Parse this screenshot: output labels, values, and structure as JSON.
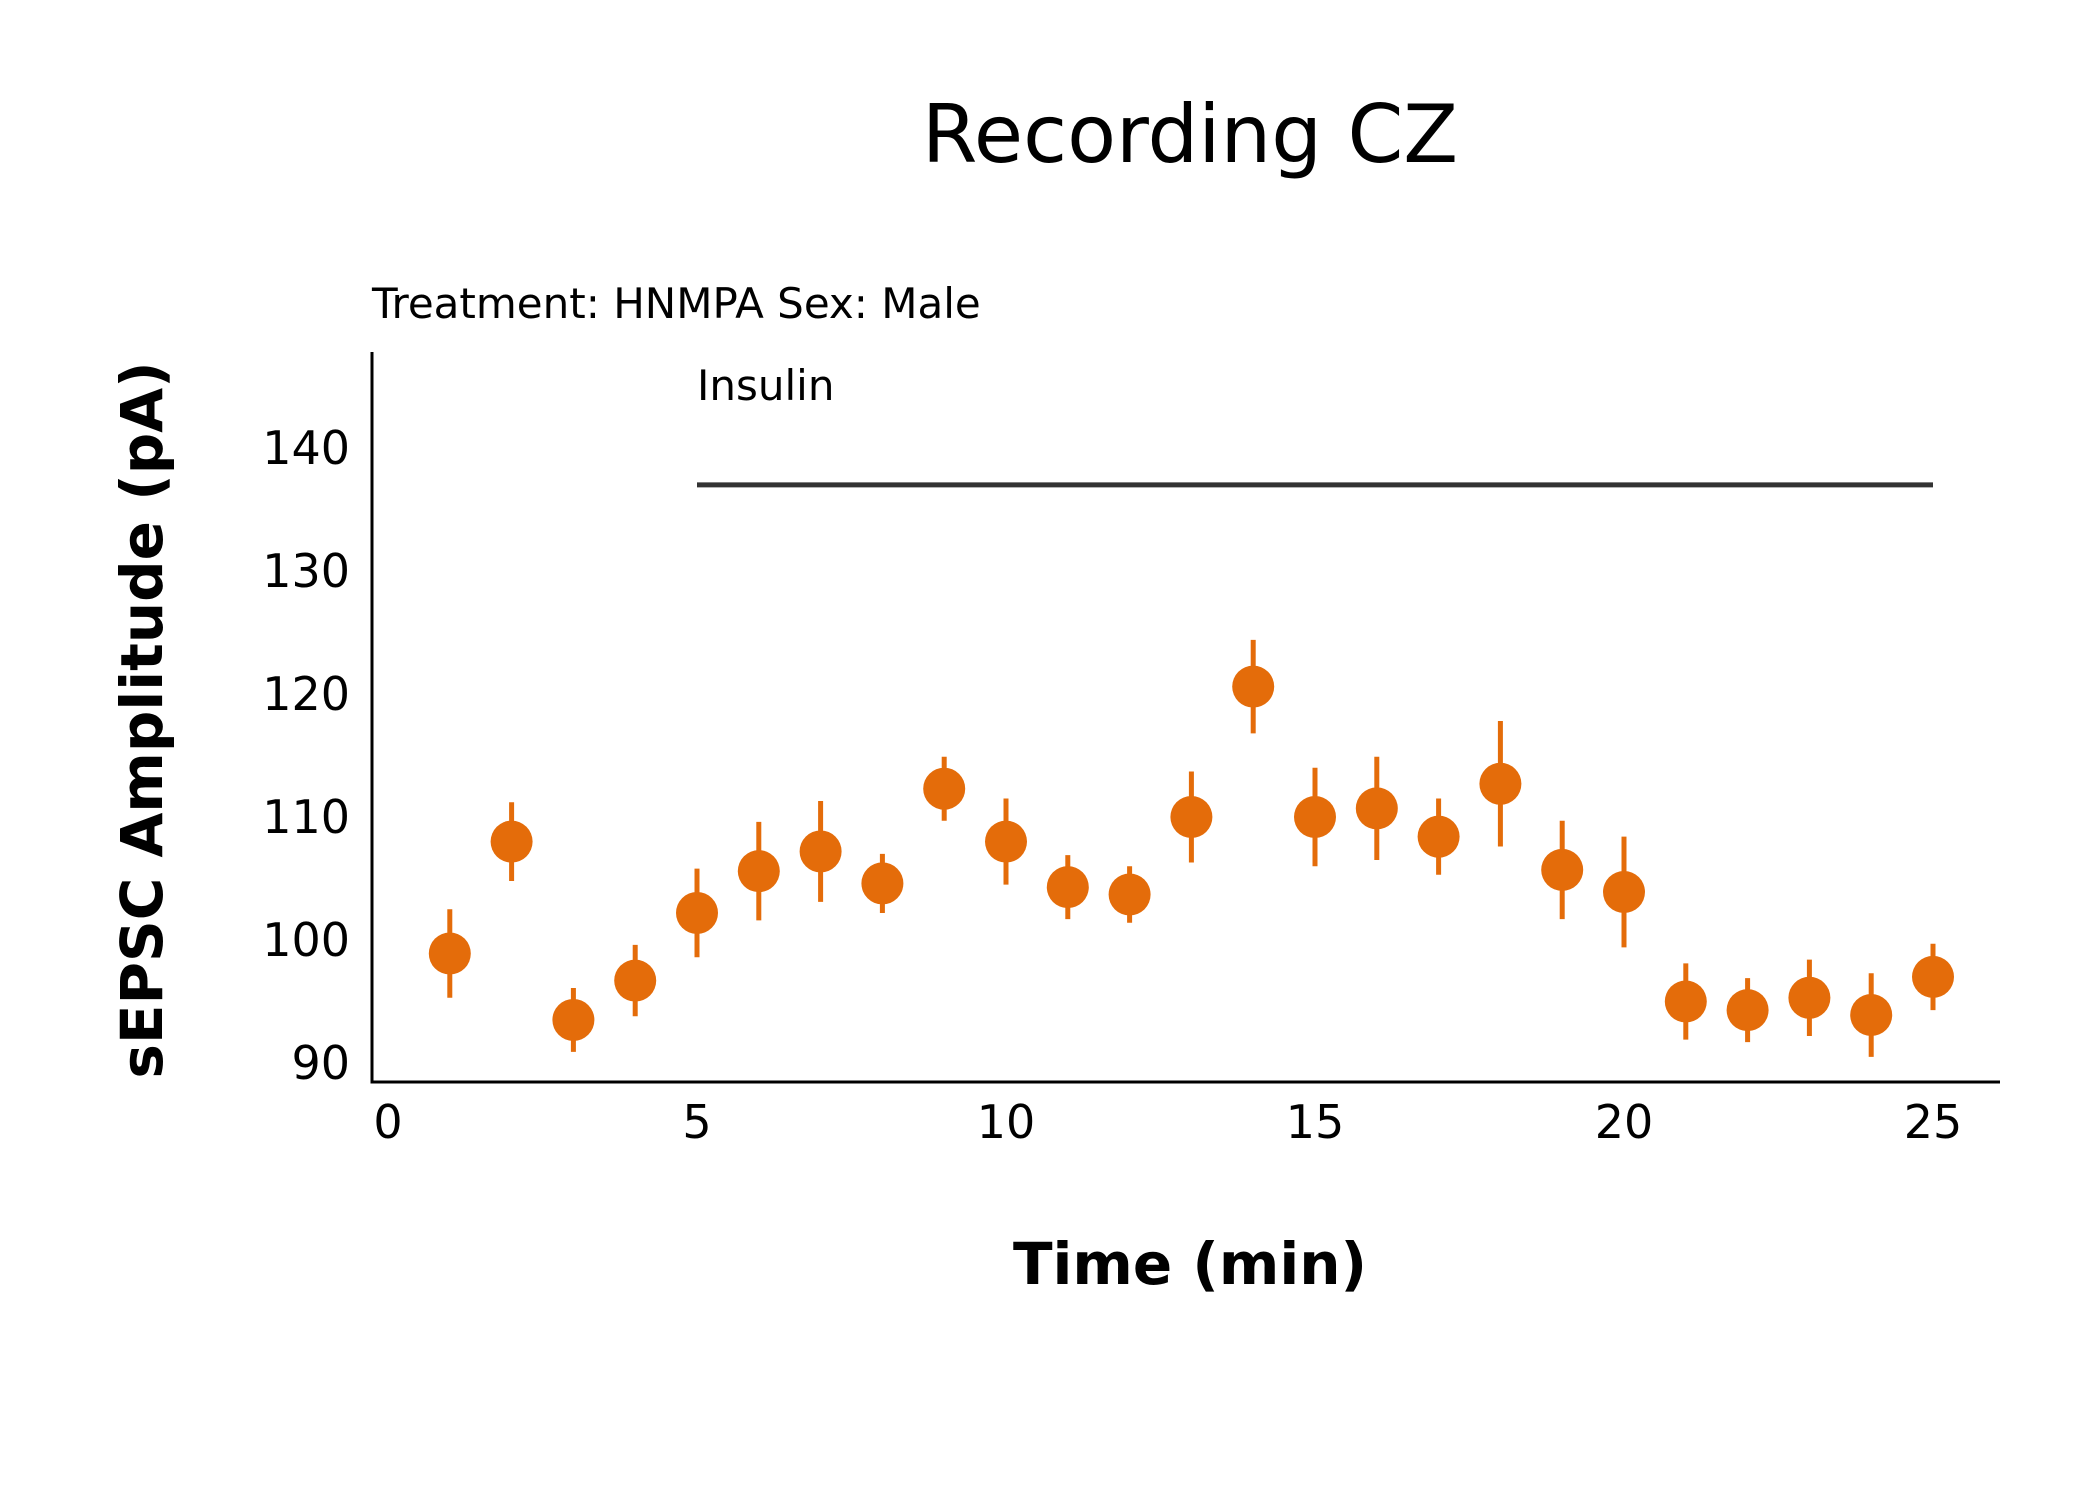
{
  "chart_data": {
    "type": "scatter",
    "title": "Recording CZ",
    "subtitle": "Treatment: HNMPA  Sex: Male",
    "xlabel": "Time (min)",
    "ylabel": "sEPSC Amplitude (pA)",
    "xlim": [
      0,
      26
    ],
    "ylim": [
      88,
      147
    ],
    "x_ticks": [
      0,
      5,
      10,
      15,
      20,
      25
    ],
    "y_ticks": [
      90,
      100,
      110,
      120,
      130,
      140
    ],
    "grid": false,
    "annotation": {
      "label": "Insulin",
      "x_start": 5,
      "x_end": 25,
      "y": 137,
      "color": "#333333"
    },
    "series": [
      {
        "color": "#E46C0A",
        "x": [
          1,
          2,
          3,
          4,
          5,
          6,
          7,
          8,
          9,
          10,
          11,
          12,
          13,
          14,
          15,
          16,
          17,
          18,
          19,
          20,
          21,
          22,
          23,
          24,
          25
        ],
        "y": [
          98.9,
          108.0,
          93.5,
          96.7,
          102.2,
          105.6,
          107.2,
          104.6,
          112.3,
          108.0,
          104.3,
          103.7,
          110.0,
          120.6,
          110.0,
          110.7,
          108.4,
          112.7,
          105.7,
          103.9,
          95.0,
          94.3,
          95.3,
          93.9,
          97.0
        ],
        "error": [
          3.6,
          3.2,
          2.6,
          2.9,
          3.6,
          4.0,
          4.1,
          2.4,
          2.6,
          3.5,
          2.6,
          2.3,
          3.7,
          3.8,
          4.0,
          4.2,
          3.1,
          5.1,
          4.0,
          4.5,
          3.1,
          2.6,
          3.1,
          3.4,
          2.7
        ]
      }
    ]
  }
}
